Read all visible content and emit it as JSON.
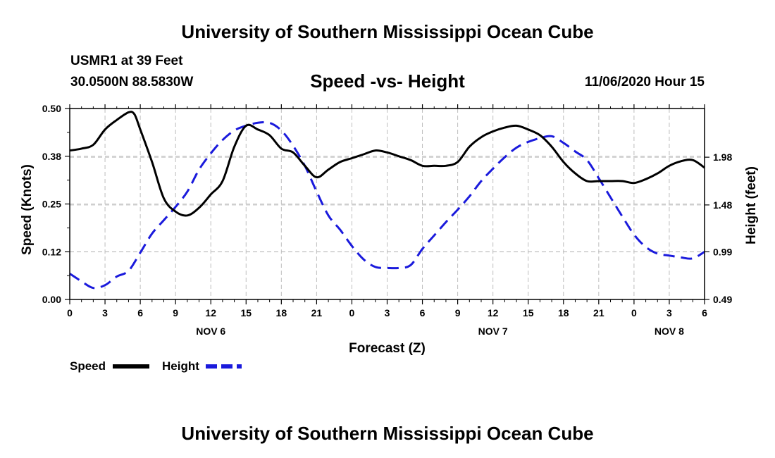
{
  "header": {
    "title": "University of Southern Mississippi Ocean Cube",
    "station": "USMR1 at 39 Feet",
    "coordinates": "30.0500N 88.5830W",
    "datetime": "11/06/2020 Hour 15"
  },
  "footer": {
    "title": "University of Southern Mississippi Ocean Cube"
  },
  "chart_data": {
    "type": "line",
    "title": "Speed -vs- Height",
    "xlabel": "Forecast (Z)",
    "ylabel": "Speed (Knots)",
    "ylabel_right": "Height (feet)",
    "x_range_hours": [
      0,
      54
    ],
    "x_tick_hours": [
      0,
      3,
      6,
      9,
      12,
      15,
      18,
      21,
      24,
      27,
      30,
      33,
      36,
      39,
      42,
      45,
      48,
      51,
      54
    ],
    "x_tick_labels": [
      "0",
      "3",
      "6",
      "9",
      "12",
      "15",
      "18",
      "21",
      "0",
      "3",
      "6",
      "9",
      "12",
      "15",
      "18",
      "21",
      "0",
      "3",
      "6"
    ],
    "day_labels": [
      {
        "hour": 12,
        "text": "NOV 6"
      },
      {
        "hour": 36,
        "text": "NOV 7"
      },
      {
        "hour": 51,
        "text": "NOV 8"
      }
    ],
    "y_left": {
      "range": [
        0.0,
        0.5
      ],
      "ticks": [
        0.0,
        0.125,
        0.25,
        0.375,
        0.5
      ],
      "tick_labels": [
        "0.00",
        "0.12",
        "0.25",
        "0.38",
        "0.50"
      ]
    },
    "y_right": {
      "range": [
        0.49,
        2.49
      ],
      "ticks": [
        0.49,
        0.99,
        1.48,
        1.98
      ],
      "tick_labels": [
        "0.49",
        "0.99",
        "1.48",
        "1.98"
      ]
    },
    "grid": true,
    "legend": "bottom-left",
    "series": [
      {
        "name": "Speed",
        "axis": "left",
        "color": "#000000",
        "style": "solid",
        "x": [
          0,
          1,
          2,
          3,
          4,
          5,
          5.5,
          6,
          7,
          8,
          9,
          10,
          11,
          12,
          13,
          14,
          15,
          16,
          17,
          18,
          19,
          20,
          21,
          22,
          23,
          24,
          25,
          26,
          27,
          28,
          29,
          30,
          31,
          32,
          33,
          34,
          35,
          36,
          37,
          38,
          39,
          40,
          41,
          42,
          43,
          44,
          45,
          46,
          47,
          48,
          49,
          50,
          51,
          52,
          53,
          54
        ],
        "values": [
          0.39,
          0.395,
          0.405,
          0.445,
          0.47,
          0.49,
          0.485,
          0.445,
          0.36,
          0.265,
          0.23,
          0.22,
          0.24,
          0.275,
          0.31,
          0.4,
          0.455,
          0.445,
          0.43,
          0.395,
          0.385,
          0.35,
          0.32,
          0.34,
          0.36,
          0.37,
          0.38,
          0.39,
          0.385,
          0.375,
          0.365,
          0.35,
          0.35,
          0.35,
          0.36,
          0.4,
          0.425,
          0.44,
          0.45,
          0.455,
          0.445,
          0.43,
          0.4,
          0.36,
          0.33,
          0.31,
          0.31,
          0.31,
          0.31,
          0.305,
          0.315,
          0.33,
          0.35,
          0.362,
          0.365,
          0.345
        ]
      },
      {
        "name": "Height",
        "axis": "right",
        "color": "#1a1adc",
        "style": "dashed",
        "x": [
          0,
          1,
          2,
          3,
          4,
          5,
          6,
          7,
          8,
          9,
          10,
          11,
          12,
          13,
          14,
          15,
          16,
          17,
          18,
          19,
          20,
          21,
          22,
          23,
          24,
          25,
          26,
          27,
          28,
          29,
          30,
          31,
          32,
          33,
          34,
          35,
          36,
          37,
          38,
          39,
          40,
          41,
          42,
          43,
          44,
          45,
          46,
          47,
          48,
          49,
          50,
          51,
          52,
          53,
          54
        ],
        "values": [
          0.76,
          0.68,
          0.61,
          0.64,
          0.73,
          0.79,
          0.98,
          1.18,
          1.32,
          1.46,
          1.62,
          1.85,
          2.02,
          2.16,
          2.26,
          2.31,
          2.34,
          2.34,
          2.26,
          2.1,
          1.89,
          1.62,
          1.37,
          1.22,
          1.05,
          0.91,
          0.83,
          0.82,
          0.82,
          0.85,
          1.02,
          1.16,
          1.3,
          1.43,
          1.57,
          1.73,
          1.86,
          1.98,
          2.08,
          2.14,
          2.18,
          2.2,
          2.13,
          2.04,
          1.95,
          1.76,
          1.56,
          1.36,
          1.17,
          1.04,
          0.97,
          0.95,
          0.93,
          0.92,
          0.99
        ]
      }
    ]
  }
}
